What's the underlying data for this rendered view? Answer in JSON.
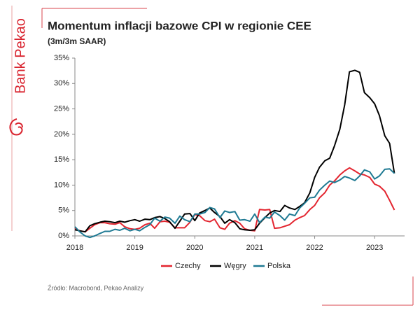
{
  "brand": "Bank Pekao",
  "chart_data": {
    "type": "line",
    "title": "Momentum inflacji bazowe CPI w regionie CEE",
    "subtitle": "(3m/3m SAAR)",
    "source": "Źródło: Macrobond, Pekao Analizy",
    "x": [
      2018,
      2018.08,
      2018.17,
      2018.25,
      2018.33,
      2018.42,
      2018.5,
      2018.58,
      2018.67,
      2018.75,
      2018.83,
      2018.92,
      2019,
      2019.08,
      2019.17,
      2019.25,
      2019.33,
      2019.42,
      2019.5,
      2019.58,
      2019.67,
      2019.75,
      2019.83,
      2019.92,
      2020,
      2020.08,
      2020.17,
      2020.25,
      2020.33,
      2020.42,
      2020.5,
      2020.58,
      2020.67,
      2020.75,
      2020.83,
      2020.92,
      2021,
      2021.08,
      2021.17,
      2021.25,
      2021.33,
      2021.42,
      2021.5,
      2021.58,
      2021.67,
      2021.75,
      2021.83,
      2021.92,
      2022,
      2022.08,
      2022.17,
      2022.25,
      2022.33,
      2022.42,
      2022.5,
      2022.58,
      2022.67,
      2022.75,
      2022.83,
      2022.92,
      2023,
      2023.08,
      2023.17,
      2023.25,
      2023.33
    ],
    "series": [
      {
        "name": "Czechy",
        "color": "#e3252f",
        "values": [
          1.5,
          1.0,
          0.8,
          1.5,
          2.2,
          2.6,
          2.6,
          2.4,
          2.3,
          2.6,
          1.8,
          1.4,
          1.3,
          1.5,
          2.2,
          2.5,
          1.5,
          2.8,
          2.9,
          2.7,
          1.6,
          1.6,
          1.6,
          2.7,
          4.2,
          4.0,
          3.0,
          2.8,
          3.3,
          1.6,
          1.3,
          2.5,
          3.0,
          2.5,
          1.4,
          1.1,
          1.0,
          5.2,
          5.1,
          5.2,
          1.5,
          1.6,
          1.9,
          2.2,
          3.1,
          3.6,
          4.0,
          5.2,
          6.0,
          7.5,
          8.5,
          10.0,
          10.8,
          12.0,
          12.8,
          13.4,
          12.8,
          12.2,
          12.0,
          11.5,
          10.2,
          9.8,
          8.8,
          7.0,
          5.1
        ]
      },
      {
        "name": "Węgry",
        "color": "#000000",
        "values": [
          1.2,
          1.0,
          0.8,
          2.0,
          2.4,
          2.7,
          2.9,
          2.8,
          2.6,
          2.9,
          2.7,
          3.0,
          3.2,
          2.9,
          3.3,
          3.2,
          3.6,
          3.8,
          3.4,
          2.8,
          1.5,
          2.9,
          4.3,
          4.4,
          3.0,
          4.5,
          5.0,
          5.5,
          4.6,
          3.8,
          2.5,
          3.2,
          2.6,
          1.4,
          1.2,
          1.1,
          1.2,
          2.5,
          3.6,
          4.5,
          5.0,
          4.8,
          6.0,
          5.5,
          5.2,
          5.8,
          6.5,
          8.5,
          11.5,
          13.5,
          14.8,
          15.3,
          17.7,
          21.0,
          25.8,
          32.3,
          32.6,
          32.2,
          28.2,
          27.2,
          26.0,
          23.7,
          19.7,
          18.2,
          12.3
        ]
      },
      {
        "name": "Polska",
        "color": "#1f7a93",
        "values": [
          1.8,
          0.8,
          0,
          -0.3,
          0,
          0.5,
          0.9,
          0.9,
          1.3,
          1.1,
          1.5,
          1.0,
          1.3,
          1.0,
          1.7,
          2.2,
          3.5,
          2.9,
          3.7,
          3.5,
          2.5,
          3.9,
          3.2,
          2.8,
          4.3,
          4.3,
          4.6,
          5.6,
          5.3,
          3.6,
          4.9,
          4.6,
          4.8,
          3.1,
          3.2,
          2.9,
          4.3,
          2.6,
          3.7,
          3.5,
          4.7,
          4.0,
          3.1,
          4.3,
          4.0,
          5.5,
          6.4,
          7.5,
          7.6,
          9.0,
          10.0,
          10.8,
          10.5,
          11.0,
          11.7,
          11.4,
          10.9,
          11.8,
          13.0,
          12.6,
          11.2,
          11.8,
          13.1,
          13.2,
          12.3
        ]
      }
    ],
    "xlim": [
      2018,
      2023.5
    ],
    "xticks": [
      2018,
      2019,
      2020,
      2021,
      2022,
      2023
    ],
    "ylim": [
      0,
      35
    ],
    "yticks": [
      {
        "value": 0,
        "label": "0%"
      },
      {
        "value": 5,
        "label": "5%"
      },
      {
        "value": 10,
        "label": "10%"
      },
      {
        "value": 15,
        "label": "15%"
      },
      {
        "value": 20,
        "label": "20%"
      },
      {
        "value": 25,
        "label": "25%"
      },
      {
        "value": 30,
        "label": "30%"
      },
      {
        "value": 35,
        "label": "35%"
      }
    ],
    "legend": "bottom"
  }
}
